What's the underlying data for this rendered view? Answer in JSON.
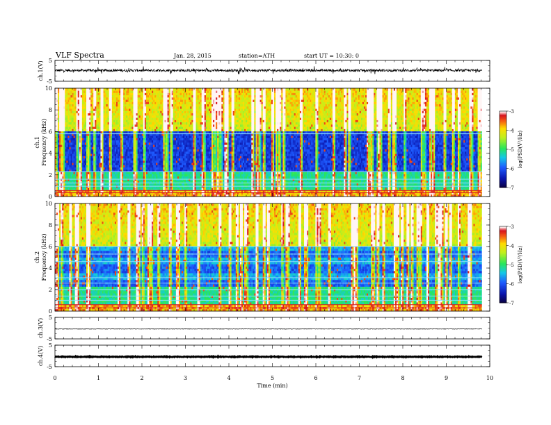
{
  "header": {
    "title": "VLF  Spectra",
    "date": "Jan. 28, 2015",
    "station": "station=ATH",
    "start": "start  UT =   10:30: 0"
  },
  "chart_data": [
    {
      "id": "ch1-waveform",
      "type": "line",
      "ylabel": "ch.1(V)",
      "ylim": [
        -5,
        5
      ],
      "yticks": [
        "5",
        "-5"
      ],
      "baseline": 0.2,
      "amplitude": 1.0
    },
    {
      "id": "ch1-spectrogram",
      "type": "heatmap",
      "ylabel": "ch.1\nFrequency  (kHz)",
      "ylim": [
        0,
        10
      ],
      "yticks": [
        "0",
        "2",
        "4",
        "6",
        "8",
        "10"
      ],
      "colorbar": {
        "label": "log(PSD(V²/Hz)",
        "range": [
          -7,
          -3
        ],
        "ticks": [
          "-3",
          "-4",
          "-5",
          "-6",
          "-7"
        ]
      }
    },
    {
      "id": "ch2-spectrogram",
      "type": "heatmap",
      "ylabel": "ch.2\nFrequency  (kHz)",
      "ylim": [
        0,
        10
      ],
      "yticks": [
        "0",
        "2",
        "4",
        "6",
        "8",
        "10"
      ],
      "colorbar": {
        "label": "log(PSD(V²/Hz)",
        "range": [
          -7,
          -3
        ],
        "ticks": [
          "-3",
          "-4",
          "-5",
          "-6",
          "-7"
        ]
      }
    },
    {
      "id": "ch3-waveform",
      "type": "line",
      "ylabel": "ch.3(V)",
      "ylim": [
        -5,
        5
      ],
      "yticks": [
        "5",
        "-5"
      ],
      "baseline": -0.4,
      "amplitude": 0.15
    },
    {
      "id": "ch4-waveform",
      "type": "line",
      "ylabel": "ch.4(V)",
      "ylim": [
        -5,
        5
      ],
      "yticks": [
        "5",
        "-5"
      ],
      "baseline": -0.4,
      "amplitude": 0.25
    }
  ],
  "x_axis": {
    "label": "Time  (min)",
    "range": [
      0,
      10
    ],
    "data_end": 9.82,
    "ticks": [
      "0",
      "1",
      "2",
      "3",
      "4",
      "5",
      "6",
      "7",
      "8",
      "9",
      "10"
    ]
  }
}
